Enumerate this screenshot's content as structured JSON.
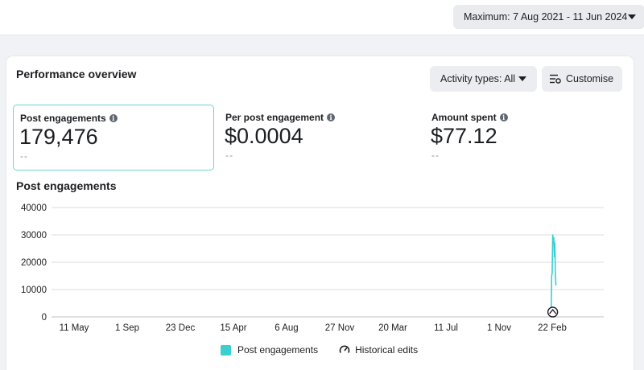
{
  "date_range": {
    "label": "Maximum: 7 Aug 2021 - 11 Jun 2024",
    "icon": "chevron-down-icon"
  },
  "overview": {
    "title": "Performance overview",
    "activity_button": "Activity types: All",
    "customise_button": "Customise"
  },
  "metrics": [
    {
      "label": "Post engagements",
      "value": "179,476",
      "delta": "--",
      "selected": true
    },
    {
      "label": "Per post engagement",
      "value": "$0.0004",
      "delta": "--",
      "selected": false
    },
    {
      "label": "Amount spent",
      "value": "$77.12",
      "delta": "--",
      "selected": false
    }
  ],
  "colors": {
    "accent": "#3ccfcf",
    "selected_border": "#6fd3d6",
    "grid": "#dadde1"
  },
  "chart_data": {
    "type": "line",
    "title": "Post engagements",
    "ylim": [
      0,
      40000
    ],
    "yticks": [
      0,
      10000,
      20000,
      30000,
      40000
    ],
    "xtick_labels": [
      "11 May",
      "1 Sep",
      "23 Dec",
      "15 Apr",
      "6 Aug",
      "27 Nov",
      "20 Mar",
      "11 Jul",
      "1 Nov",
      "22 Feb"
    ],
    "grid": true,
    "series": [
      {
        "name": "Post engagements",
        "color": "#3ccfcf",
        "x": [
          "2024-03-04",
          "2024-03-05",
          "2024-03-06",
          "2024-03-07",
          "2024-03-08",
          "2024-03-09",
          "2024-03-10",
          "2024-03-11",
          "2024-03-12",
          "2024-03-13"
        ],
        "values": [
          0,
          15000,
          16000,
          30000,
          27000,
          29000,
          22000,
          27000,
          15000,
          11500
        ]
      }
    ],
    "legend": [
      "Post engagements",
      "Historical edits"
    ],
    "legend_position": "bottom",
    "annotation_icon": "historical-edit-icon"
  }
}
